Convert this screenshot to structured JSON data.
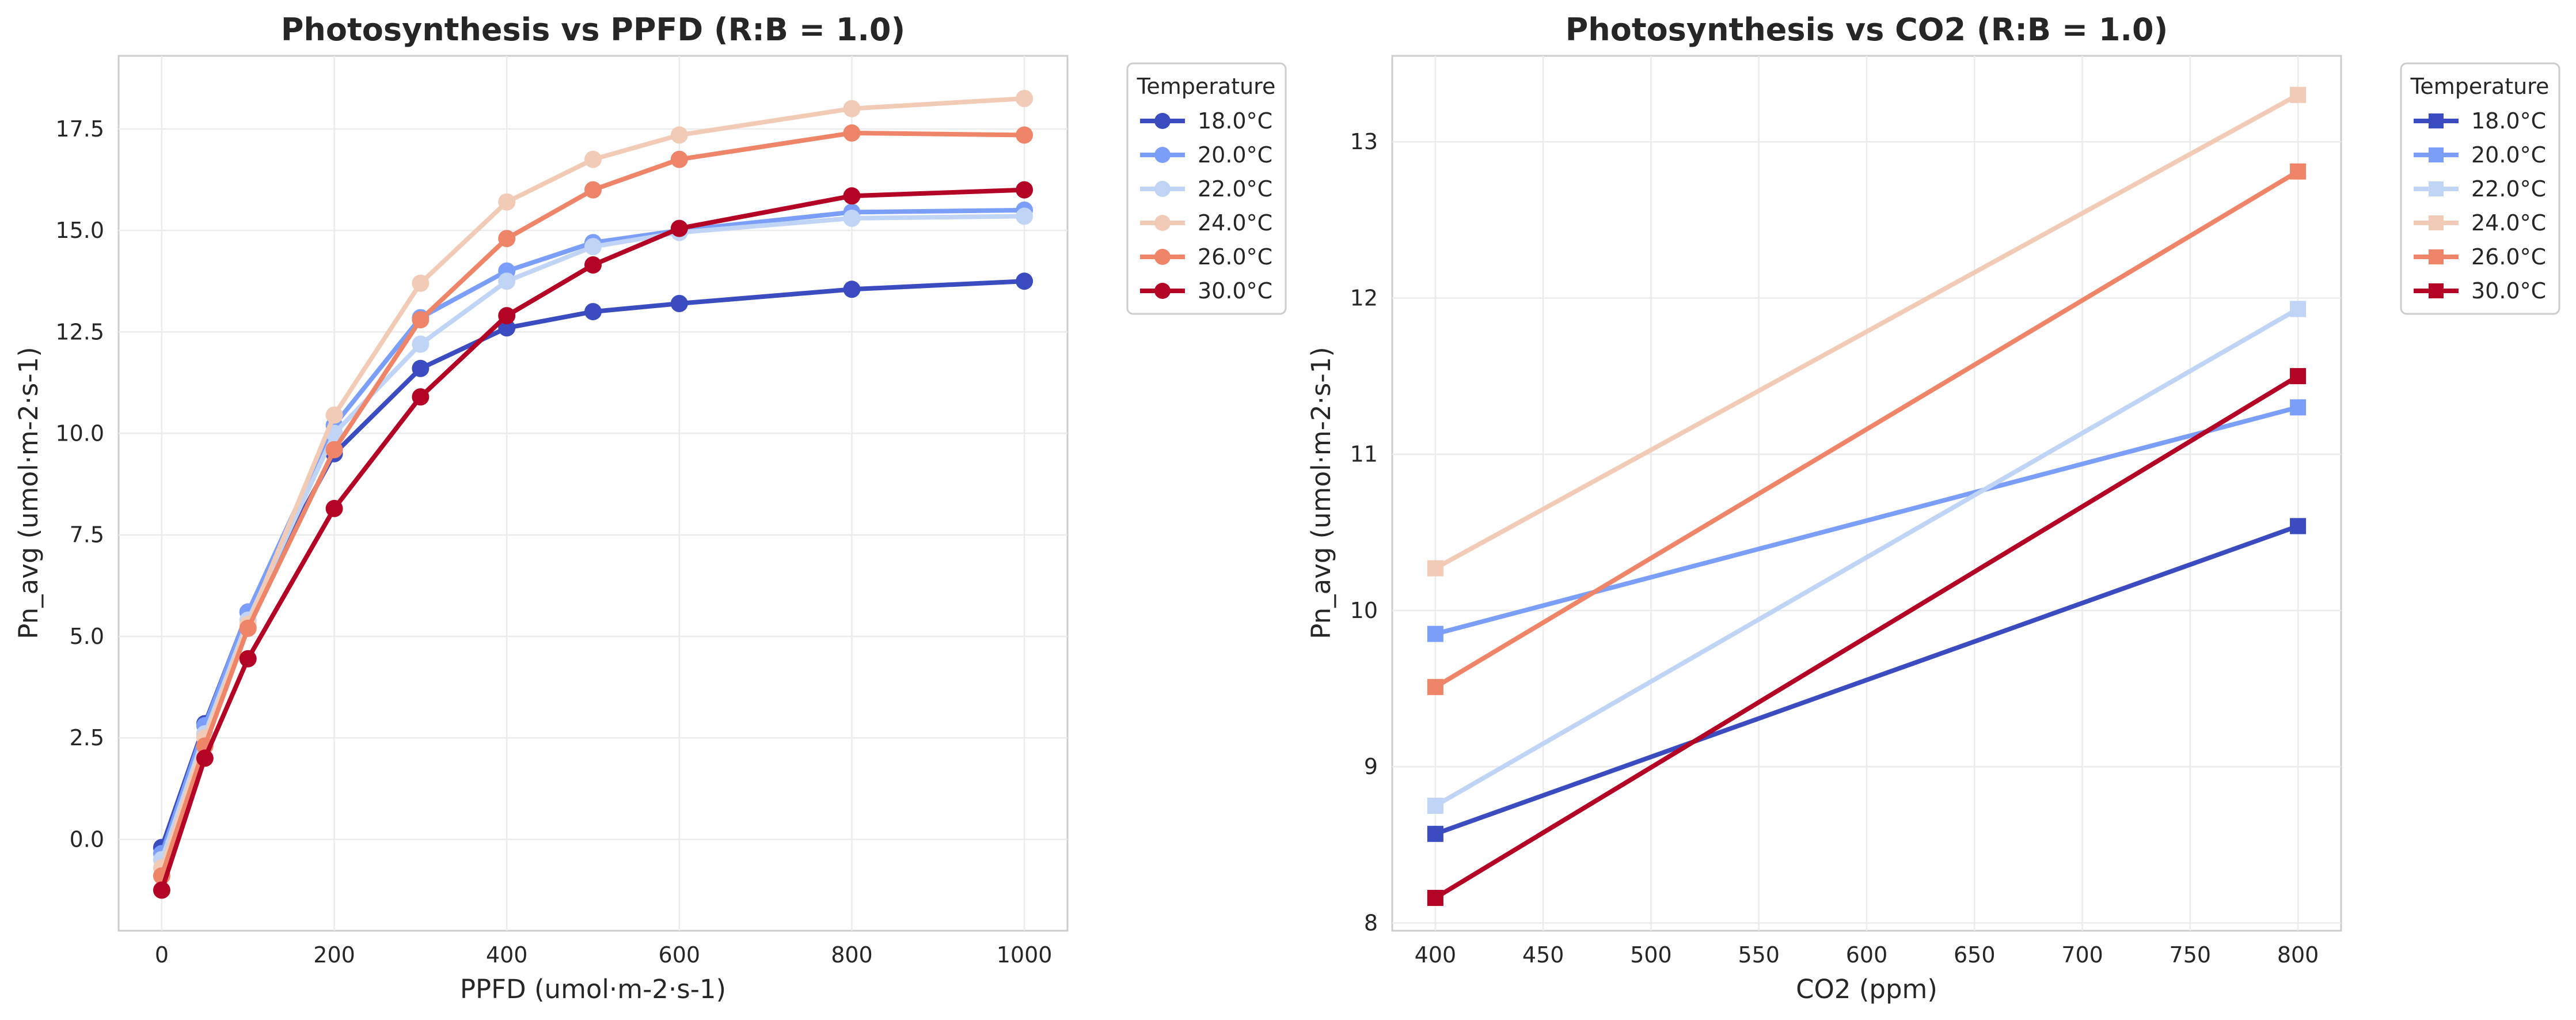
{
  "chart_data": [
    {
      "type": "line",
      "title": "Photosynthesis vs PPFD (R:B = 1.0)",
      "xlabel": "PPFD (umol·m-2·s-1)",
      "ylabel": "Pn_avg (umol·m-2·s-1)",
      "xlim": [
        -50,
        1050
      ],
      "ylim": [
        -2.25,
        19.3
      ],
      "xticks": [
        0,
        200,
        400,
        600,
        800,
        1000
      ],
      "yticks": [
        0.0,
        2.5,
        5.0,
        7.5,
        10.0,
        12.5,
        15.0,
        17.5
      ],
      "ytick_labels": [
        "0.0",
        "2.5",
        "5.0",
        "7.5",
        "10.0",
        "12.5",
        "15.0",
        "17.5"
      ],
      "marker": "circle",
      "grid": true,
      "legend_title": "Temperature",
      "legend_placement": "outside-top-right",
      "x": [
        0,
        50,
        100,
        200,
        300,
        400,
        500,
        600,
        800,
        1000
      ],
      "series": [
        {
          "name": "18.0°C",
          "color": "#3b4cc0",
          "values": [
            -0.2,
            2.85,
            5.6,
            9.5,
            11.6,
            12.6,
            13.0,
            13.2,
            13.55,
            13.75
          ]
        },
        {
          "name": "20.0°C",
          "color": "#7b9ff9",
          "values": [
            -0.35,
            2.8,
            5.6,
            10.2,
            12.85,
            14.0,
            14.7,
            15.0,
            15.45,
            15.5
          ]
        },
        {
          "name": "22.0°C",
          "color": "#c0d4f5",
          "values": [
            -0.5,
            2.6,
            5.4,
            10.0,
            12.2,
            13.75,
            14.6,
            14.95,
            15.3,
            15.35
          ]
        },
        {
          "name": "24.0°C",
          "color": "#f2cbb7",
          "values": [
            -0.7,
            2.5,
            5.3,
            10.45,
            13.7,
            15.7,
            16.75,
            17.35,
            18.0,
            18.25
          ]
        },
        {
          "name": "26.0°C",
          "color": "#ee8468",
          "values": [
            -0.9,
            2.3,
            5.2,
            9.6,
            12.8,
            14.8,
            16.0,
            16.75,
            17.4,
            17.35
          ]
        },
        {
          "name": "30.0°C",
          "color": "#b40426",
          "values": [
            -1.25,
            2.0,
            4.45,
            8.15,
            10.9,
            12.9,
            14.15,
            15.05,
            15.85,
            16.0
          ]
        }
      ]
    },
    {
      "type": "line",
      "title": "Photosynthesis vs CO2 (R:B = 1.0)",
      "xlabel": "CO2 (ppm)",
      "ylabel": "Pn_avg (umol·m-2·s-1)",
      "xlim": [
        380,
        820
      ],
      "ylim": [
        7.95,
        13.55
      ],
      "xticks": [
        400,
        450,
        500,
        550,
        600,
        650,
        700,
        750,
        800
      ],
      "yticks": [
        8,
        9,
        10,
        11,
        12,
        13
      ],
      "ytick_labels": [
        "8",
        "9",
        "10",
        "11",
        "12",
        "13"
      ],
      "marker": "square",
      "grid": true,
      "legend_title": "Temperature",
      "legend_placement": "outside-top-right",
      "x": [
        400,
        800
      ],
      "series": [
        {
          "name": "18.0°C",
          "color": "#3b4cc0",
          "values": [
            8.57,
            10.54
          ]
        },
        {
          "name": "20.0°C",
          "color": "#7b9ff9",
          "values": [
            9.85,
            11.3
          ]
        },
        {
          "name": "22.0°C",
          "color": "#c0d4f5",
          "values": [
            8.75,
            11.93
          ]
        },
        {
          "name": "24.0°C",
          "color": "#f2cbb7",
          "values": [
            10.27,
            13.3
          ]
        },
        {
          "name": "26.0°C",
          "color": "#ee8468",
          "values": [
            9.51,
            12.81
          ]
        },
        {
          "name": "30.0°C",
          "color": "#b40426",
          "values": [
            8.16,
            11.5
          ]
        }
      ]
    }
  ]
}
